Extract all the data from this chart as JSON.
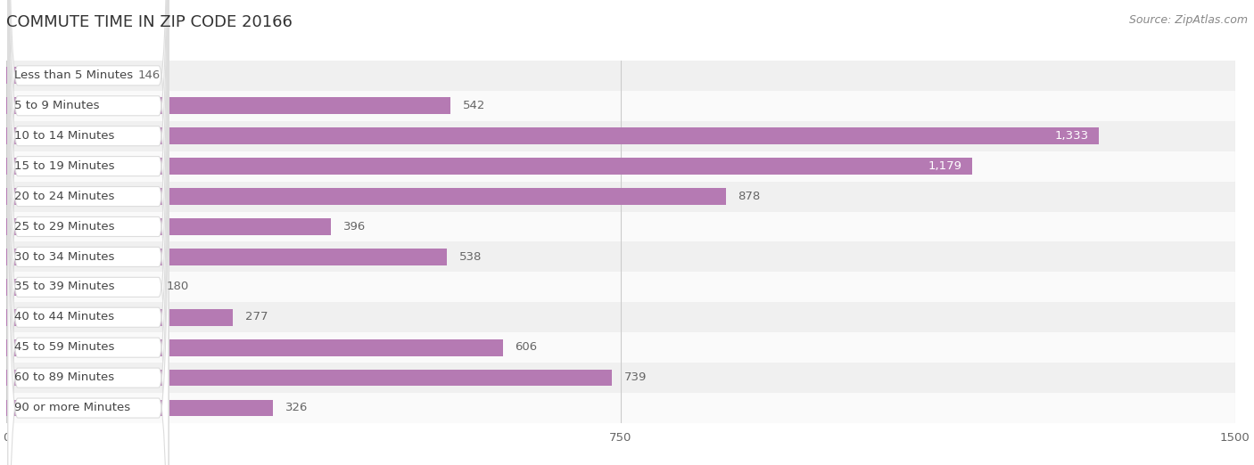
{
  "title": "COMMUTE TIME IN ZIP CODE 20166",
  "source": "Source: ZipAtlas.com",
  "categories": [
    "Less than 5 Minutes",
    "5 to 9 Minutes",
    "10 to 14 Minutes",
    "15 to 19 Minutes",
    "20 to 24 Minutes",
    "25 to 29 Minutes",
    "30 to 34 Minutes",
    "35 to 39 Minutes",
    "40 to 44 Minutes",
    "45 to 59 Minutes",
    "60 to 89 Minutes",
    "90 or more Minutes"
  ],
  "values": [
    146,
    542,
    1333,
    1179,
    878,
    396,
    538,
    180,
    277,
    606,
    739,
    326
  ],
  "bar_color": "#b57ab3",
  "row_bg_even": "#f0f0f0",
  "row_bg_odd": "#fafafa",
  "row_sep_color": "#e0e0e0",
  "pill_bg": "#ffffff",
  "pill_border": "#dddddd",
  "label_color": "#444444",
  "value_color_outside": "#666666",
  "value_color_inside": "#ffffff",
  "xlim": [
    0,
    1500
  ],
  "xticks": [
    0,
    750,
    1500
  ],
  "title_fontsize": 13,
  "label_fontsize": 9.5,
  "value_fontsize": 9.5,
  "source_fontsize": 9
}
